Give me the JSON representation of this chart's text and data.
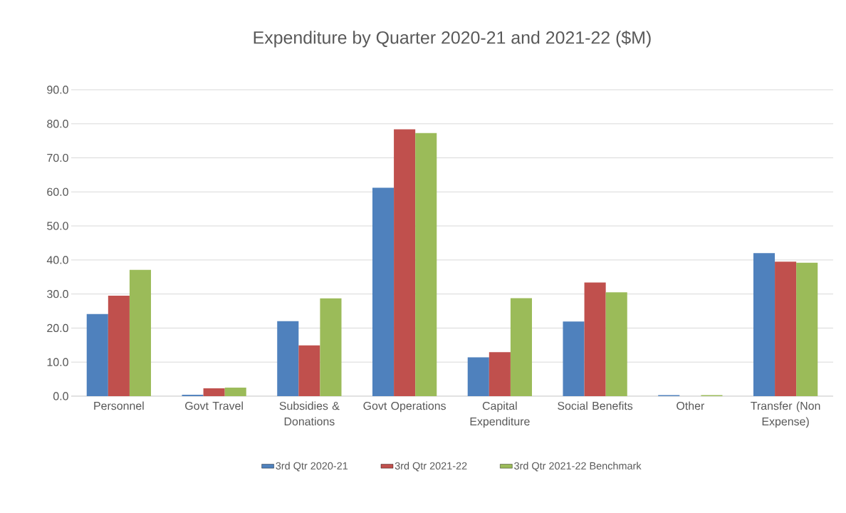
{
  "chart_data": {
    "type": "bar",
    "title": "Expenditure by Quarter 2020-21 and 2021-22 ($M)",
    "categories": [
      "Personnel",
      "Govt Travel",
      "Subsidies & Donations",
      "Govt Operations",
      "Capital Expenditure",
      "Social Benefits",
      "Other",
      "Transfer (Non Expense)"
    ],
    "series": [
      {
        "name": "3rd Qtr 2020-21",
        "color": "#4f81bd",
        "values": [
          24.1,
          0.4,
          22.0,
          61.2,
          11.4,
          21.9,
          0.3,
          42.0
        ]
      },
      {
        "name": "3rd Qtr 2021-22",
        "color": "#c0504d",
        "values": [
          29.5,
          2.3,
          14.9,
          78.4,
          12.9,
          33.4,
          0,
          39.5
        ]
      },
      {
        "name": "3rd Qtr 2021-22 Benchmark",
        "color": "#9bbb59",
        "values": [
          37.1,
          2.5,
          28.7,
          77.3,
          28.8,
          30.5,
          0.3,
          39.2
        ]
      }
    ],
    "ylim": [
      0,
      90
    ],
    "yticks": [
      {
        "value": 0,
        "label": "0.0"
      },
      {
        "value": 10,
        "label": "10.0"
      },
      {
        "value": 20,
        "label": "20.0"
      },
      {
        "value": 30,
        "label": "30.0"
      },
      {
        "value": 40,
        "label": "40.0"
      },
      {
        "value": 50,
        "label": "50.0"
      },
      {
        "value": 60,
        "label": "60.0"
      },
      {
        "value": 70,
        "label": "70.0"
      },
      {
        "value": 80,
        "label": "80.0"
      },
      {
        "value": 90,
        "label": "90.0"
      }
    ],
    "grid": "y",
    "legend": "bottom"
  }
}
